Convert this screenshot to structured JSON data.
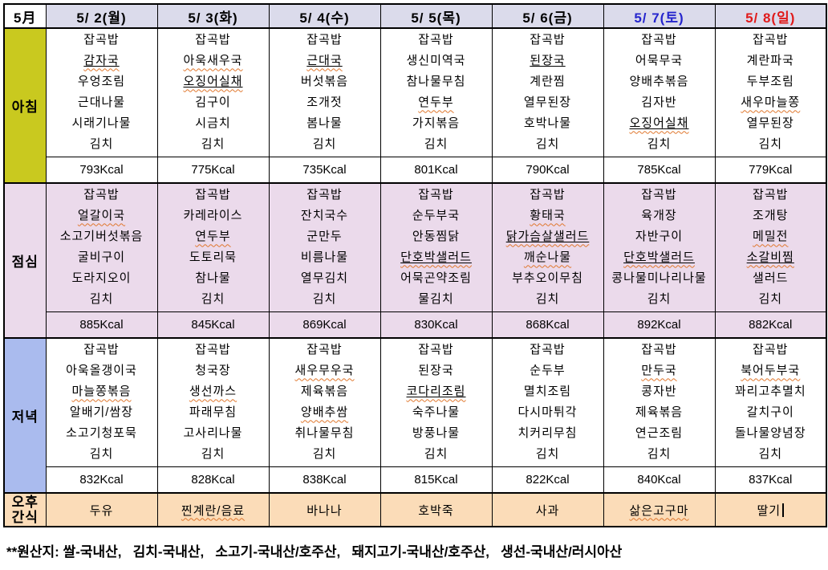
{
  "header": {
    "month_label": "5月"
  },
  "row_labels": {
    "breakfast": "아침",
    "lunch": "점심",
    "dinner": "저녁",
    "snack": "오후간식"
  },
  "colors": {
    "header_bg": "#DBDBEB",
    "breakfast_label_bg": "#C9C91F",
    "lunch_bg": "#EBDAEB",
    "dinner_label_bg": "#AABBEE",
    "snack_bg": "#FBDCB8",
    "saturday_text": "#2525CD",
    "sunday_text": "#E01A1A",
    "wavy_underline": "#E0772D",
    "weekday_text": "#000000"
  },
  "footer": {
    "text": "**원산지: 쌀-국내산,   김치-국내산,   소고기-국내산/호주산,   돼지고기-국내산/호주산,   생선-국내산/러시아산"
  },
  "days": [
    {
      "date": "5/ 2(월)",
      "date_color": "#000000",
      "breakfast": {
        "items": [
          {
            "t": "잡곡밥"
          },
          {
            "t": "감자국",
            "u": true,
            "w": true
          },
          {
            "t": "우엉조림"
          },
          {
            "t": "근대나물"
          },
          {
            "t": "시래기나물"
          },
          {
            "t": "김치"
          }
        ],
        "kcal": "793Kcal"
      },
      "lunch": {
        "items": [
          {
            "t": "잡곡밥"
          },
          {
            "t": "얼갈이국",
            "w": true
          },
          {
            "t": "소고기버섯볶음"
          },
          {
            "t": "굴비구이"
          },
          {
            "t": "도라지오이"
          },
          {
            "t": "김치"
          }
        ],
        "kcal": "885Kcal"
      },
      "dinner": {
        "items": [
          {
            "t": "잡곡밥"
          },
          {
            "t": "아욱올갱이국"
          },
          {
            "t": "마늘쫑볶음",
            "w": true
          },
          {
            "t": "알배기/쌈장"
          },
          {
            "t": "소고기청포묵"
          },
          {
            "t": "김치"
          }
        ],
        "kcal": "832Kcal"
      },
      "snack": {
        "t": "두유"
      }
    },
    {
      "date": "5/ 3(화)",
      "date_color": "#000000",
      "breakfast": {
        "items": [
          {
            "t": "잡곡밥"
          },
          {
            "t": "아욱새우국",
            "w": true
          },
          {
            "t": "오징어실채",
            "u": true,
            "w": true
          },
          {
            "t": "김구이"
          },
          {
            "t": "시금치"
          },
          {
            "t": "김치"
          }
        ],
        "kcal": "775Kcal"
      },
      "lunch": {
        "items": [
          {
            "t": "잡곡밥"
          },
          {
            "t": "카레라이스"
          },
          {
            "t": "연두부",
            "w": true
          },
          {
            "t": "도토리묵"
          },
          {
            "t": "참나물"
          },
          {
            "t": "김치"
          }
        ],
        "kcal": "845Kcal"
      },
      "dinner": {
        "items": [
          {
            "t": "잡곡밥"
          },
          {
            "t": "청국장"
          },
          {
            "t": "생선까스",
            "w": true
          },
          {
            "t": "파래무침"
          },
          {
            "t": "고사리나물"
          },
          {
            "t": "김치"
          }
        ],
        "kcal": "828Kcal"
      },
      "snack": {
        "t": "찐계란/음료",
        "w": true
      }
    },
    {
      "date": "5/ 4(수)",
      "date_color": "#000000",
      "breakfast": {
        "items": [
          {
            "t": "잡곡밥"
          },
          {
            "t": "근대국",
            "u": true,
            "w": true
          },
          {
            "t": "버섯볶음"
          },
          {
            "t": "조개젓"
          },
          {
            "t": "봄나물"
          },
          {
            "t": "김치"
          }
        ],
        "kcal": "735Kcal"
      },
      "lunch": {
        "items": [
          {
            "t": "잡곡밥"
          },
          {
            "t": "잔치국수"
          },
          {
            "t": "군만두"
          },
          {
            "t": "비름나물"
          },
          {
            "t": "열무김치"
          },
          {
            "t": "김치"
          }
        ],
        "kcal": "869Kcal"
      },
      "dinner": {
        "items": [
          {
            "t": "잡곡밥"
          },
          {
            "t": "새우무우국",
            "w": true
          },
          {
            "t": "제육볶음"
          },
          {
            "t": "양배추쌈",
            "w": true
          },
          {
            "t": "취나물무침"
          },
          {
            "t": "김치"
          }
        ],
        "kcal": "838Kcal"
      },
      "snack": {
        "t": "바나나"
      }
    },
    {
      "date": "5/ 5(목)",
      "date_color": "#000000",
      "breakfast": {
        "items": [
          {
            "t": "잡곡밥"
          },
          {
            "t": "생신미역국"
          },
          {
            "t": "참나물무침"
          },
          {
            "t": "연두부",
            "w": true
          },
          {
            "t": "가지볶음"
          },
          {
            "t": "김치"
          }
        ],
        "kcal": "801Kcal"
      },
      "lunch": {
        "items": [
          {
            "t": "잡곡밥"
          },
          {
            "t": "순두부국"
          },
          {
            "t": "안동찜닭"
          },
          {
            "t": "단호박샐러드",
            "u": true,
            "w": true
          },
          {
            "t": "어묵곤약조림"
          },
          {
            "t": "물김치"
          }
        ],
        "kcal": "830Kcal"
      },
      "dinner": {
        "items": [
          {
            "t": "잡곡밥"
          },
          {
            "t": "된장국"
          },
          {
            "t": "코다리조림",
            "u": true,
            "w": true
          },
          {
            "t": "숙주나물"
          },
          {
            "t": "방풍나물"
          },
          {
            "t": "김치"
          }
        ],
        "kcal": "815Kcal"
      },
      "snack": {
        "t": "호박죽"
      }
    },
    {
      "date": "5/ 6(금)",
      "date_color": "#000000",
      "breakfast": {
        "items": [
          {
            "t": "잡곡밥"
          },
          {
            "t": "된장국",
            "u": true
          },
          {
            "t": "계란찜"
          },
          {
            "t": "열무된장"
          },
          {
            "t": "호박나물"
          },
          {
            "t": "김치"
          }
        ],
        "kcal": "790Kcal"
      },
      "lunch": {
        "items": [
          {
            "t": "잡곡밥"
          },
          {
            "t": "황태국",
            "w": true
          },
          {
            "t": "닭가슴살샐러드",
            "u": true,
            "w": true
          },
          {
            "t": "깨순나물",
            "w": true
          },
          {
            "t": "부추오이무침"
          },
          {
            "t": "김치"
          }
        ],
        "kcal": "868Kcal"
      },
      "dinner": {
        "items": [
          {
            "t": "잡곡밥"
          },
          {
            "t": "순두부"
          },
          {
            "t": "멸치조림"
          },
          {
            "t": "다시마튀각"
          },
          {
            "t": "치커리무침"
          },
          {
            "t": "김치"
          }
        ],
        "kcal": "822Kcal"
      },
      "snack": {
        "t": "사과"
      }
    },
    {
      "date": "5/ 7(토)",
      "date_color": "#2525CD",
      "breakfast": {
        "items": [
          {
            "t": "잡곡밥"
          },
          {
            "t": "어묵무국"
          },
          {
            "t": "양배추볶음"
          },
          {
            "t": "김자반"
          },
          {
            "t": "오징어실채",
            "u": true,
            "w": true
          },
          {
            "t": "김치"
          }
        ],
        "kcal": "785Kcal"
      },
      "lunch": {
        "items": [
          {
            "t": "잡곡밥"
          },
          {
            "t": "육개장"
          },
          {
            "t": "자반구이"
          },
          {
            "t": "단호박샐러드",
            "u": true,
            "w": true
          },
          {
            "t": "콩나물미나리나물"
          },
          {
            "t": "김치"
          }
        ],
        "kcal": "892Kcal"
      },
      "dinner": {
        "items": [
          {
            "t": "잡곡밥"
          },
          {
            "t": "만두국",
            "w": true
          },
          {
            "t": "콩자반"
          },
          {
            "t": "제육볶음"
          },
          {
            "t": "연근조림"
          },
          {
            "t": "김치"
          }
        ],
        "kcal": "840Kcal"
      },
      "snack": {
        "t": "삶은고구마",
        "w": true
      }
    },
    {
      "date": "5/ 8(일)",
      "date_color": "#E01A1A",
      "breakfast": {
        "items": [
          {
            "t": "잡곡밥"
          },
          {
            "t": "계란파국"
          },
          {
            "t": "두부조림"
          },
          {
            "t": "새우마늘쫑",
            "w": true
          },
          {
            "t": "열무된장"
          },
          {
            "t": "김치"
          }
        ],
        "kcal": "779Kcal"
      },
      "lunch": {
        "items": [
          {
            "t": "잡곡밥"
          },
          {
            "t": "조개탕"
          },
          {
            "t": "메밀전",
            "w": true
          },
          {
            "t": "소갈비찜",
            "u": true,
            "w": true
          },
          {
            "t": "샐러드"
          },
          {
            "t": "김치"
          }
        ],
        "kcal": "882Kcal"
      },
      "dinner": {
        "items": [
          {
            "t": "잡곡밥"
          },
          {
            "t": "북어두부국",
            "w": true
          },
          {
            "t": "꽈리고추멸치"
          },
          {
            "t": "갈치구이"
          },
          {
            "t": "돌나물양념장"
          },
          {
            "t": "김치"
          }
        ],
        "kcal": "837Kcal"
      },
      "snack": {
        "t": "딸기",
        "caret": true
      }
    }
  ]
}
